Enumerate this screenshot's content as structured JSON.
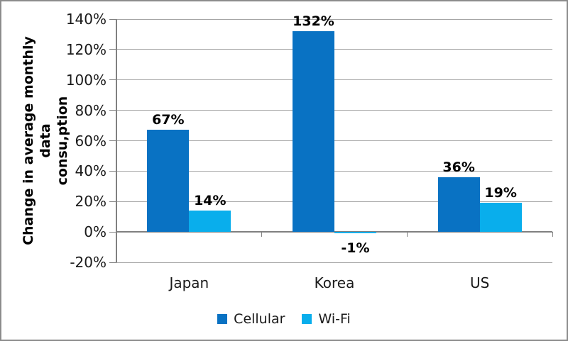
{
  "chart_data": {
    "type": "bar",
    "title": "",
    "categories": [
      "Japan",
      "Korea",
      "US"
    ],
    "series": [
      {
        "name": "Cellular",
        "color": "#0972C3",
        "values": [
          67,
          132,
          36
        ],
        "data_labels": [
          "67%",
          "132%",
          "36%"
        ]
      },
      {
        "name": "Wi-Fi",
        "color": "#09AEEC",
        "values": [
          14,
          -1,
          19
        ],
        "data_labels": [
          "14%",
          "-1%",
          "19%"
        ]
      }
    ],
    "ylabel_line1": "Change in average monthly data",
    "ylabel_line2": "consu,ption",
    "xlabel": "",
    "ylim": [
      -20,
      140
    ],
    "ytick_step": 20,
    "ytick_labels": [
      "140%",
      "120%",
      "100%",
      "80%",
      "60%",
      "40%",
      "20%",
      "0%",
      "-20%"
    ],
    "grid": true,
    "legend_position": "bottom"
  },
  "styles": {
    "background": "#FFFFFF",
    "frame_border": "#8C8C8C",
    "gridline_color": "#A6A6A6",
    "axis_line_color": "#808080",
    "tick_text_color": "#1A1A1A",
    "data_label_color": "#000000"
  }
}
